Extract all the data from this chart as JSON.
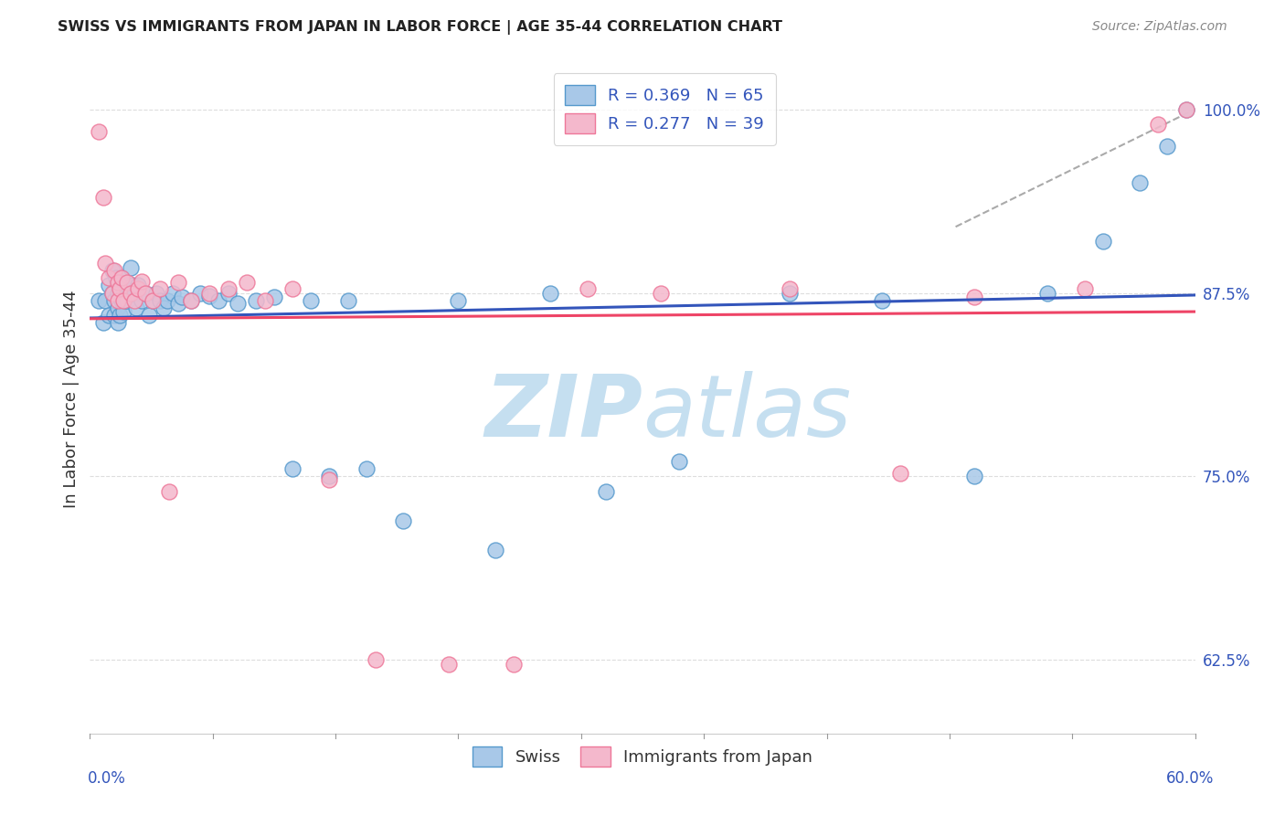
{
  "title": "SWISS VS IMMIGRANTS FROM JAPAN IN LABOR FORCE | AGE 35-44 CORRELATION CHART",
  "source": "Source: ZipAtlas.com",
  "ylabel": "In Labor Force | Age 35-44",
  "legend_label_blue": "Swiss",
  "legend_label_pink": "Immigrants from Japan",
  "r_blue": 0.369,
  "n_blue": 65,
  "r_pink": 0.277,
  "n_pink": 39,
  "color_blue": "#a8c8e8",
  "color_pink": "#f4b8cc",
  "color_blue_edge": "#5599cc",
  "color_pink_edge": "#ee7799",
  "line_blue": "#3355bb",
  "line_pink": "#ee4466",
  "line_dashed": "#aaaaaa",
  "watermark_zip_color": "#c5dff0",
  "watermark_atlas_color": "#c5dff0",
  "right_ytick_color": "#3355bb",
  "right_yticks": [
    100.0,
    87.5,
    75.0,
    62.5
  ],
  "xmin": 0.0,
  "xmax": 0.6,
  "ymin": 0.575,
  "ymax": 1.03,
  "blue_x": [
    0.005,
    0.007,
    0.008,
    0.01,
    0.01,
    0.012,
    0.012,
    0.013,
    0.013,
    0.014,
    0.015,
    0.015,
    0.015,
    0.016,
    0.016,
    0.017,
    0.017,
    0.018,
    0.018,
    0.019,
    0.02,
    0.02,
    0.022,
    0.023,
    0.024,
    0.025,
    0.026,
    0.028,
    0.03,
    0.032,
    0.034,
    0.036,
    0.038,
    0.04,
    0.042,
    0.045,
    0.048,
    0.05,
    0.055,
    0.06,
    0.065,
    0.07,
    0.075,
    0.08,
    0.09,
    0.1,
    0.11,
    0.12,
    0.13,
    0.14,
    0.15,
    0.17,
    0.2,
    0.22,
    0.25,
    0.28,
    0.32,
    0.38,
    0.43,
    0.48,
    0.52,
    0.55,
    0.57,
    0.585,
    0.595
  ],
  "blue_y": [
    0.87,
    0.855,
    0.87,
    0.88,
    0.86,
    0.89,
    0.875,
    0.87,
    0.86,
    0.885,
    0.875,
    0.865,
    0.855,
    0.875,
    0.86,
    0.885,
    0.87,
    0.875,
    0.862,
    0.87,
    0.88,
    0.87,
    0.892,
    0.88,
    0.875,
    0.865,
    0.88,
    0.87,
    0.875,
    0.86,
    0.87,
    0.875,
    0.87,
    0.865,
    0.87,
    0.875,
    0.868,
    0.872,
    0.87,
    0.875,
    0.873,
    0.87,
    0.875,
    0.868,
    0.87,
    0.872,
    0.755,
    0.87,
    0.75,
    0.87,
    0.755,
    0.72,
    0.87,
    0.7,
    0.875,
    0.74,
    0.76,
    0.875,
    0.87,
    0.75,
    0.875,
    0.91,
    0.95,
    0.975,
    1.0
  ],
  "pink_x": [
    0.005,
    0.007,
    0.008,
    0.01,
    0.012,
    0.013,
    0.015,
    0.015,
    0.016,
    0.017,
    0.018,
    0.02,
    0.022,
    0.024,
    0.026,
    0.028,
    0.03,
    0.034,
    0.038,
    0.043,
    0.048,
    0.055,
    0.065,
    0.075,
    0.085,
    0.095,
    0.11,
    0.13,
    0.155,
    0.195,
    0.23,
    0.27,
    0.31,
    0.38,
    0.44,
    0.48,
    0.54,
    0.58,
    0.595
  ],
  "pink_y": [
    0.985,
    0.94,
    0.895,
    0.885,
    0.875,
    0.89,
    0.882,
    0.87,
    0.878,
    0.885,
    0.87,
    0.882,
    0.875,
    0.87,
    0.878,
    0.883,
    0.875,
    0.87,
    0.878,
    0.74,
    0.882,
    0.87,
    0.875,
    0.878,
    0.882,
    0.87,
    0.878,
    0.748,
    0.625,
    0.622,
    0.622,
    0.878,
    0.875,
    0.878,
    0.752,
    0.872,
    0.878,
    0.99,
    1.0
  ]
}
